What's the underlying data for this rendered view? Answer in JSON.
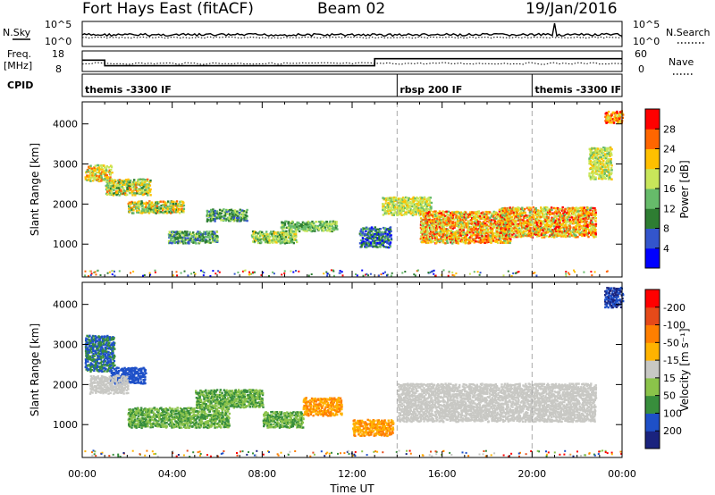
{
  "header": {
    "title": "Fort Hays East (fitACF)",
    "beam": "Beam 02",
    "date": "19/Jan/2016"
  },
  "noise_panel": {
    "left_label": "N.Sky",
    "right_label": "N.Search",
    "left_ticks": [
      "10^5",
      "10^0"
    ],
    "right_ticks": [
      "10^5",
      "10^0"
    ],
    "series": [
      {
        "name": "N.Sky",
        "style": "solid"
      },
      {
        "name": "N.Search",
        "style": "dotted"
      }
    ],
    "spike_time_h": 21.0
  },
  "freq_panel": {
    "left_label_line1": "Freq.",
    "left_label_line2": "[MHz]",
    "right_label": "Nave",
    "left_ticks": [
      "18",
      "8"
    ],
    "right_ticks": [
      "60",
      "0"
    ],
    "freq_segments": [
      {
        "t0": 0,
        "t1": 1.0,
        "value": 0.55
      },
      {
        "t0": 1.0,
        "t1": 13.0,
        "value": 0.28
      },
      {
        "t0": 13.0,
        "t1": 24.0,
        "value": 0.62
      }
    ]
  },
  "cpid_panel": {
    "label": "CPID",
    "segments": [
      {
        "start_h": 0,
        "label": "themis -3300 IF"
      },
      {
        "start_h": 14,
        "label": "rbsp 200 IF"
      },
      {
        "start_h": 20,
        "label": "themis -3300 IF"
      }
    ]
  },
  "chart_data": [
    {
      "type": "heatmap",
      "name": "power",
      "ylabel": "Slant Range [km]",
      "yticks": [
        1000,
        2000,
        3000,
        4000
      ],
      "ylim": [
        180,
        4550
      ],
      "xlim_hours": [
        0,
        24
      ],
      "xticks": [
        "00:00",
        "04:00",
        "08:00",
        "12:00",
        "16:00",
        "20:00",
        "00:00"
      ],
      "colorbar": {
        "label": "Power [dB]",
        "ticks": [
          "4",
          "8",
          "12",
          "16",
          "20",
          "24",
          "28"
        ],
        "colors": [
          "#0000ff",
          "#3355cc",
          "#2e7d32",
          "#66bb6a",
          "#c8e65a",
          "#ffc000",
          "#ff6600",
          "#ff0000"
        ]
      },
      "blobs": [
        {
          "t0": 0.1,
          "t1": 1.3,
          "r0": 2550,
          "r1": 2950,
          "level": [
            3,
            6
          ]
        },
        {
          "t0": 1.0,
          "t1": 3.0,
          "r0": 2200,
          "r1": 2600,
          "level": [
            2,
            6
          ]
        },
        {
          "t0": 2.0,
          "t1": 4.5,
          "r0": 1750,
          "r1": 2050,
          "level": [
            2,
            6
          ]
        },
        {
          "t0": 3.8,
          "t1": 6.0,
          "r0": 1000,
          "r1": 1300,
          "level": [
            1,
            4
          ]
        },
        {
          "t0": 5.5,
          "t1": 7.3,
          "r0": 1550,
          "r1": 1850,
          "level": [
            1,
            4
          ]
        },
        {
          "t0": 7.5,
          "t1": 9.5,
          "r0": 1000,
          "r1": 1300,
          "level": [
            2,
            5
          ]
        },
        {
          "t0": 8.8,
          "t1": 11.3,
          "r0": 1300,
          "r1": 1550,
          "level": [
            2,
            4
          ]
        },
        {
          "t0": 12.3,
          "t1": 13.7,
          "r0": 900,
          "r1": 1400,
          "level": [
            0,
            3
          ]
        },
        {
          "t0": 13.3,
          "t1": 15.5,
          "r0": 1700,
          "r1": 2150,
          "level": [
            3,
            5
          ]
        },
        {
          "t0": 15.0,
          "t1": 19.0,
          "r0": 1000,
          "r1": 1800,
          "level": [
            3,
            7
          ]
        },
        {
          "t0": 18.5,
          "t1": 22.8,
          "r0": 1150,
          "r1": 1900,
          "level": [
            3,
            7
          ]
        },
        {
          "t0": 22.5,
          "t1": 23.5,
          "r0": 2600,
          "r1": 3400,
          "level": [
            3,
            5
          ]
        },
        {
          "t0": 23.2,
          "t1": 24.0,
          "r0": 4000,
          "r1": 4300,
          "level": [
            4,
            7
          ]
        }
      ]
    },
    {
      "type": "heatmap",
      "name": "velocity",
      "ylabel": "Slant Range [km]",
      "yticks": [
        1000,
        2000,
        3000,
        4000
      ],
      "ylim": [
        180,
        4550
      ],
      "xlim_hours": [
        0,
        24
      ],
      "xticks": [
        "00:00",
        "04:00",
        "08:00",
        "12:00",
        "16:00",
        "20:00",
        "00:00"
      ],
      "xlabel": "Time UT",
      "colorbar": {
        "label": "Velocity [m s⁻¹]",
        "ticks": [
          "200",
          "100",
          "50",
          "15",
          "-15",
          "-50",
          "-100",
          "-200"
        ],
        "colors": [
          "#1a237e",
          "#1e50c8",
          "#388e3c",
          "#8bc34a",
          "#c8c8c4",
          "#ffb300",
          "#ff7f00",
          "#e64a19",
          "#ff0000"
        ]
      },
      "blobs": [
        {
          "t0": 0.1,
          "t1": 1.4,
          "r0": 2300,
          "r1": 3200,
          "level": [
            1,
            2
          ]
        },
        {
          "t0": 1.2,
          "t1": 2.8,
          "r0": 2000,
          "r1": 2400,
          "level": [
            1,
            1
          ]
        },
        {
          "t0": 0.3,
          "t1": 2.0,
          "r0": 1750,
          "r1": 2200,
          "level": [
            4,
            4
          ]
        },
        {
          "t0": 2.0,
          "t1": 6.5,
          "r0": 900,
          "r1": 1400,
          "level": [
            2,
            3
          ]
        },
        {
          "t0": 5.0,
          "t1": 8.0,
          "r0": 1400,
          "r1": 1850,
          "level": [
            2,
            3
          ]
        },
        {
          "t0": 8.0,
          "t1": 9.8,
          "r0": 900,
          "r1": 1300,
          "level": [
            2,
            3
          ]
        },
        {
          "t0": 9.8,
          "t1": 11.5,
          "r0": 1200,
          "r1": 1650,
          "level": [
            5,
            6
          ]
        },
        {
          "t0": 12.0,
          "t1": 13.8,
          "r0": 700,
          "r1": 1100,
          "level": [
            5,
            6
          ]
        },
        {
          "t0": 14.0,
          "t1": 22.8,
          "r0": 1050,
          "r1": 2000,
          "level": [
            4,
            4
          ]
        },
        {
          "t0": 23.2,
          "t1": 24.0,
          "r0": 3900,
          "r1": 4400,
          "level": [
            0,
            1
          ]
        }
      ]
    }
  ]
}
